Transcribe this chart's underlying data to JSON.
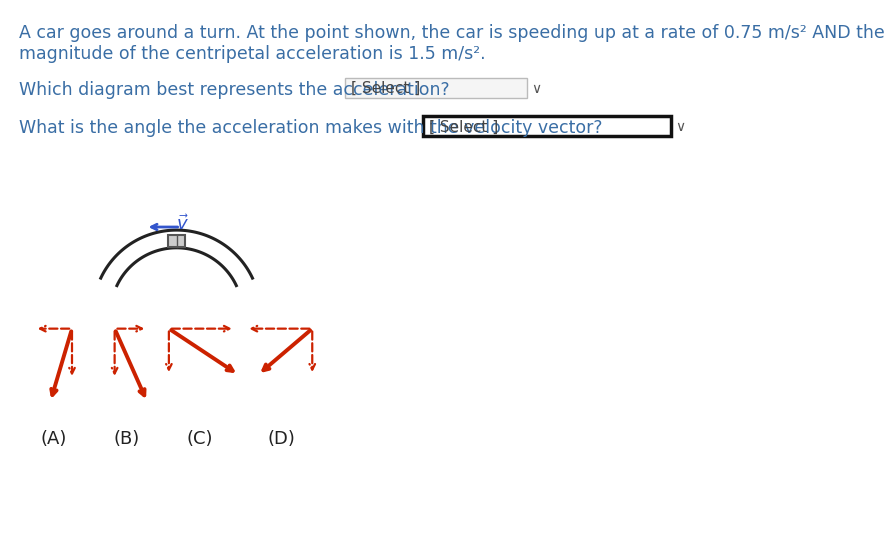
{
  "bg_color": "#ffffff",
  "text_color": "#3a6ea5",
  "red_color": "#cc2200",
  "blue_color": "#3355cc",
  "title_line1": "A car goes around a turn. At the point shown, the car is speeding up at a rate of 0.75 m/s² AND the",
  "title_line2": "magnitude of the centripetal acceleration is 1.5 m/s².",
  "question1": "Which diagram best represents the acceleration?",
  "question2": "What is the angle the acceleration makes with the velocity vector?",
  "select_text": "[ Select ]",
  "labels": [
    "(A)",
    "(B)",
    "(C)",
    "(D)"
  ]
}
